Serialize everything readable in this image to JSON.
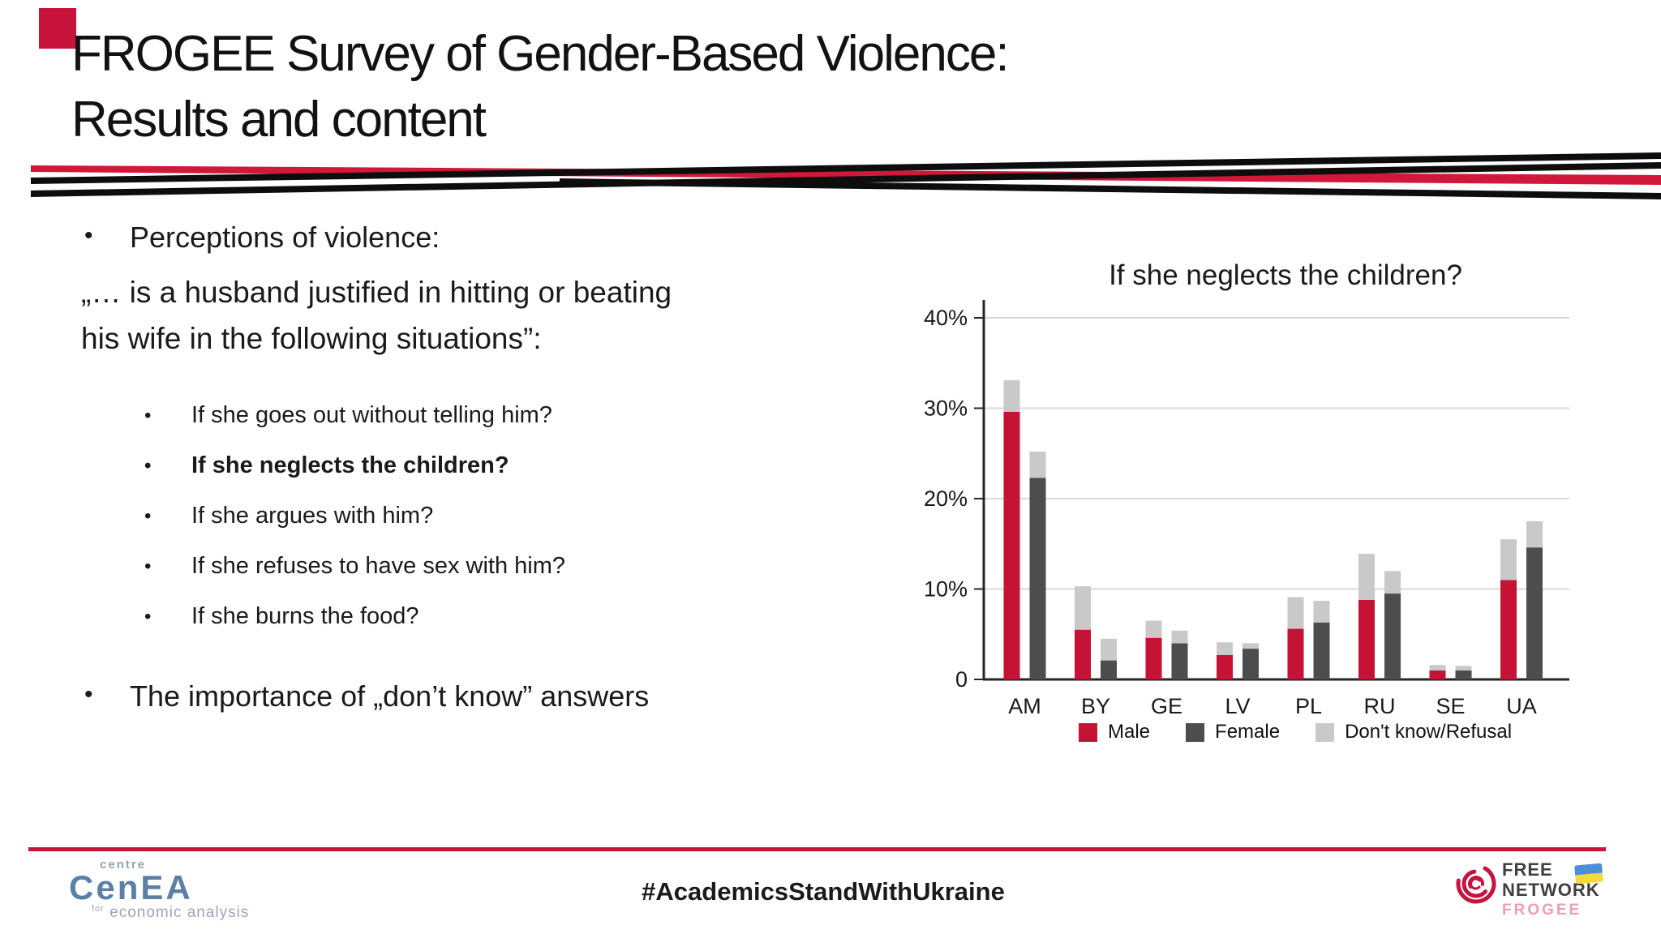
{
  "slide": {
    "title_line1": "FROGEE Survey of Gender-Based Violence:",
    "title_line2": "Results and content",
    "accent_color": "#c8143a"
  },
  "bullets": {
    "main1": "Perceptions of violence:",
    "quote_line1": "„… is a husband justified in hitting or beating",
    "quote_line2": "his wife in the following situations”:",
    "sub_items": [
      "If she goes out without telling him?",
      "If she neglects the children?",
      "If she argues with him?",
      "If she refuses to have sex with him?",
      "If she burns the food?"
    ],
    "main2": "The importance of „don’t know” answers"
  },
  "chart_data": {
    "type": "bar",
    "title": "If she neglects the children?",
    "categories": [
      "AM",
      "BY",
      "GE",
      "LV",
      "PL",
      "RU",
      "SE",
      "UA"
    ],
    "series": [
      {
        "name": "Male",
        "color": "#c51235",
        "values": [
          29.6,
          5.5,
          4.6,
          2.7,
          5.6,
          8.8,
          1.0,
          11.0
        ]
      },
      {
        "name": "Female",
        "color": "#4d4d4d",
        "values": [
          22.3,
          2.1,
          4.0,
          3.4,
          6.3,
          9.5,
          1.0,
          14.6
        ]
      },
      {
        "name": "Don't know/Refusal",
        "color": "#c9c9c9",
        "male_addon": [
          3.5,
          4.8,
          1.9,
          1.4,
          3.5,
          5.1,
          0.6,
          4.5
        ],
        "female_addon": [
          2.9,
          2.4,
          1.4,
          0.6,
          2.4,
          2.5,
          0.5,
          2.9
        ]
      }
    ],
    "ylim": [
      0,
      40
    ],
    "yticks": [
      {
        "v": 0,
        "label": "0"
      },
      {
        "v": 10,
        "label": "10%"
      },
      {
        "v": 20,
        "label": "20%"
      },
      {
        "v": 30,
        "label": "30%"
      },
      {
        "v": 40,
        "label": "40%"
      }
    ],
    "grid": "horizontal",
    "legend_position": "bottom"
  },
  "footer": {
    "cenea_top": "centre",
    "cenea_name": "CenEA",
    "cenea_sub": "economic analysis",
    "cenea_sub_prefix": "for",
    "hashtag": "#AcademicsStandWithUkraine",
    "free_line1": "FREE",
    "free_line2": "NETWORK",
    "free_line3": "FROGEE"
  }
}
